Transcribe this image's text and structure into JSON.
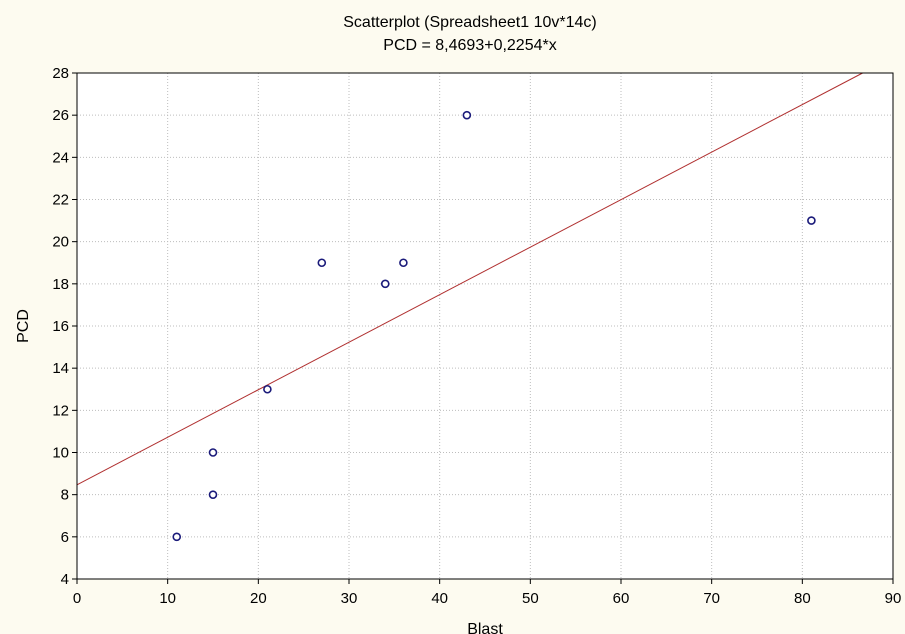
{
  "chart_data": {
    "type": "scatter",
    "title": "Scatterplot (Spreadsheet1 10v*14c)",
    "subtitle": "PCD = 8,4693+0,2254*x",
    "xlabel": "Blast",
    "ylabel": "PCD",
    "xlim": [
      0,
      90
    ],
    "ylim": [
      4,
      28
    ],
    "xticks": [
      0,
      10,
      20,
      30,
      40,
      50,
      60,
      70,
      80,
      90
    ],
    "yticks": [
      4,
      6,
      8,
      10,
      12,
      14,
      16,
      18,
      20,
      22,
      24,
      26,
      28
    ],
    "grid": true,
    "legend": "none",
    "points": [
      {
        "x": 11,
        "y": 6
      },
      {
        "x": 15,
        "y": 8
      },
      {
        "x": 15,
        "y": 10
      },
      {
        "x": 21,
        "y": 13
      },
      {
        "x": 27,
        "y": 19
      },
      {
        "x": 34,
        "y": 18
      },
      {
        "x": 36,
        "y": 19
      },
      {
        "x": 43,
        "y": 26
      },
      {
        "x": 81,
        "y": 21
      }
    ],
    "fit_line": {
      "intercept": 8.4693,
      "slope": 0.2254
    },
    "colors": {
      "background": "#fdfbf0",
      "plot_area": "#ffffff",
      "grid": "#bdbdbd",
      "marker": "#1a1a7a",
      "fit_line": "#b03030"
    }
  }
}
